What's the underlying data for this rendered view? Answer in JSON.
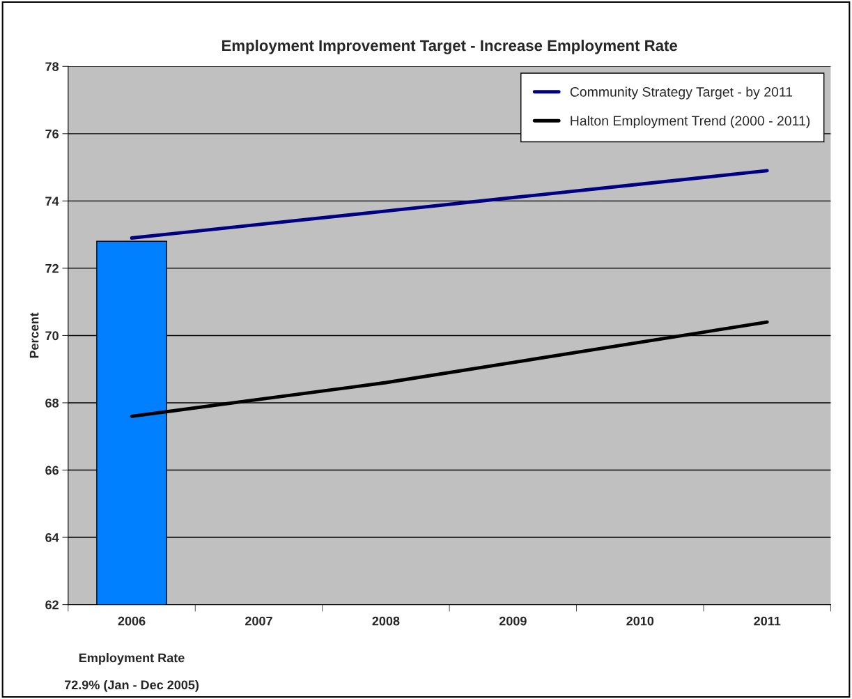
{
  "chart_data": {
    "type": "bar",
    "title": "Employment Improvement Target - Increase Employment Rate",
    "ylabel": "Percent",
    "categories": [
      "2006",
      "2007",
      "2008",
      "2009",
      "2010",
      "2011"
    ],
    "series": [
      {
        "color": "#0080ff",
        "values": [
          72.8,
          null,
          null,
          null,
          null,
          null
        ]
      },
      {
        "type": "line",
        "name": "Community Strategy Target - by 2011",
        "color": "#000080",
        "values": [
          72.9,
          73.3,
          73.7,
          74.1,
          74.5,
          74.9
        ]
      },
      {
        "type": "line",
        "name": "Halton Employment Trend (2000 - 2011)",
        "color": "#000000",
        "values": [
          67.6,
          68.1,
          68.6,
          69.2,
          69.8,
          70.4
        ]
      }
    ],
    "annotations": [
      "Employment Rate",
      "72.9% (Jan - Dec 2005)"
    ],
    "ylim": [
      62,
      78
    ],
    "yticks": [
      62,
      64,
      66,
      68,
      70,
      72,
      74,
      76,
      78
    ],
    "grid": "y",
    "legend": "top right",
    "marker": "none",
    "line_style": "solid"
  }
}
